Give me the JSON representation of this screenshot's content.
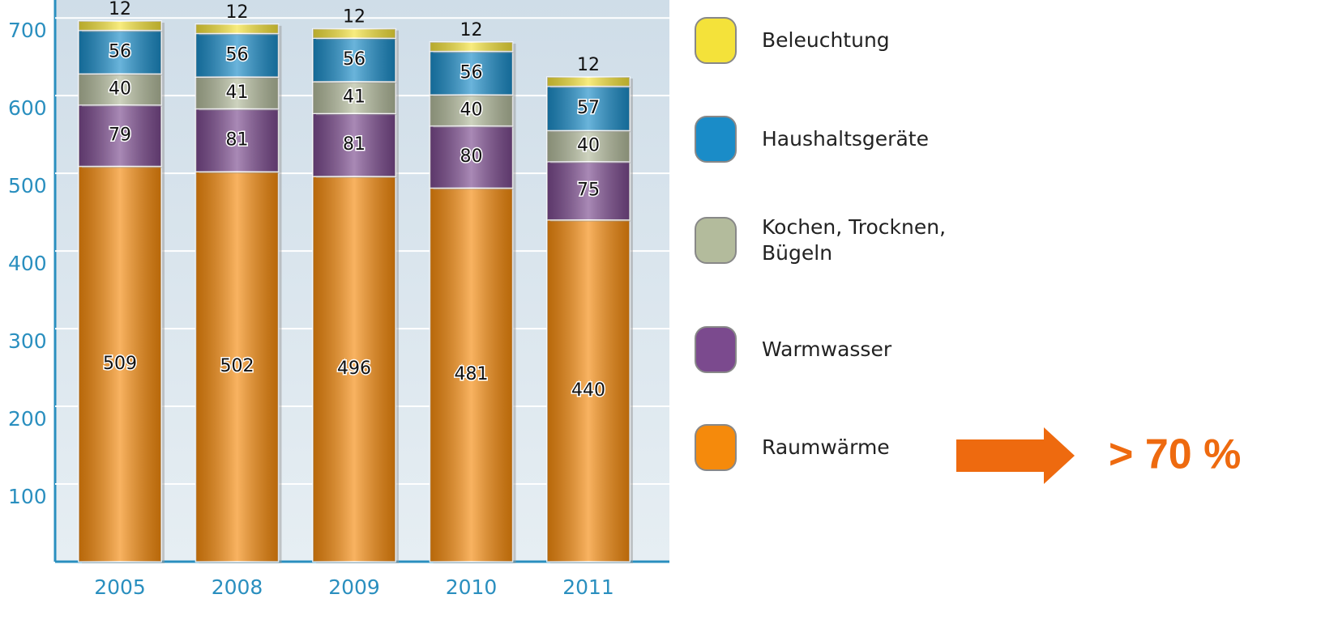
{
  "chart_data": {
    "type": "stacked_bar",
    "categories": [
      "2005",
      "2008",
      "2009",
      "2010",
      "2011"
    ],
    "series": [
      {
        "name": "Raumwärme",
        "color": "#f58a0c",
        "values": [
          509,
          502,
          496,
          481,
          440
        ]
      },
      {
        "name": "Warmwasser",
        "color": "#7b4a8e",
        "values": [
          79,
          81,
          81,
          80,
          75
        ]
      },
      {
        "name": "Kochen, Trocknen, Bügeln",
        "color": "#b3bb9c",
        "values": [
          40,
          41,
          41,
          40,
          40
        ]
      },
      {
        "name": "Haushaltsgeräte",
        "color": "#1a8cc8",
        "values": [
          56,
          56,
          56,
          56,
          57
        ]
      },
      {
        "name": "Beleuchtung",
        "color": "#f4e23a",
        "values": [
          12,
          12,
          12,
          12,
          12
        ]
      }
    ],
    "ylim": [
      0,
      720
    ],
    "yticks": [
      100,
      200,
      300,
      400,
      500,
      600,
      700
    ],
    "grid": true,
    "annotation": "> 70 %"
  }
}
